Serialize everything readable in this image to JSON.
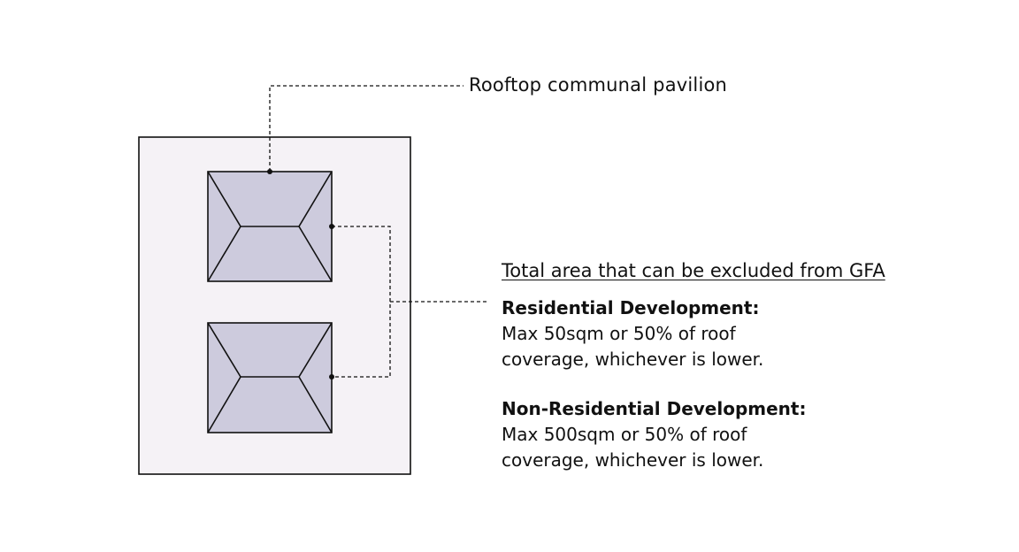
{
  "diagram": {
    "callout": {
      "label": "Rooftop communal pavilion"
    },
    "gfa_note": {
      "heading": "Total area that can be excluded from GFA",
      "residential": {
        "heading": "Residential Development:",
        "line1": "Max 50sqm or 50% of roof",
        "line2": "coverage, whichever is lower."
      },
      "non_residential": {
        "heading": "Non-Residential Development:",
        "line1": "Max 500sqm or 50% of roof",
        "line2": "coverage, whichever is lower."
      }
    },
    "colors": {
      "roof_fill": "#f5f2f6",
      "pavilion_fill": "#cdcbdd",
      "stroke": "#111111"
    }
  }
}
